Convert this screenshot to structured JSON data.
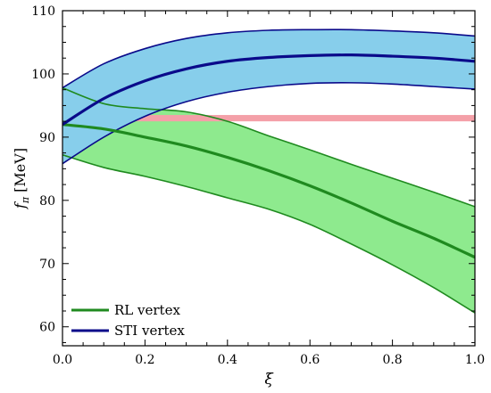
{
  "chart_data": {
    "type": "line",
    "xlabel": "ξ",
    "ylabel_var": "f",
    "ylabel_sub": "π",
    "ylabel_unit": "[MeV]",
    "xlim": [
      0,
      1
    ],
    "ylim": [
      57,
      110
    ],
    "xticks": [
      0.0,
      0.2,
      0.4,
      0.6,
      0.8,
      1.0
    ],
    "xtick_labels": [
      "0.0",
      "0.2",
      "0.4",
      "0.6",
      "0.8",
      "1.0"
    ],
    "yticks": [
      60,
      70,
      80,
      90,
      100,
      110
    ],
    "ytick_labels": [
      "60",
      "70",
      "80",
      "90",
      "100",
      "110"
    ],
    "grid": false,
    "legend_position": "bottom-left",
    "reference_band": {
      "y_low": 92.5,
      "y_high": 93.5,
      "color": "#f4a0a8"
    },
    "series": [
      {
        "name": "RL vertex",
        "color": "#1f8a1f",
        "fill": "#8eea8e",
        "x": [
          0.0,
          0.1,
          0.2,
          0.3,
          0.4,
          0.5,
          0.6,
          0.7,
          0.8,
          0.9,
          1.0
        ],
        "center": [
          92,
          91.3,
          90.0,
          88.6,
          86.8,
          84.7,
          82.3,
          79.6,
          76.7,
          74.0,
          71.0
        ],
        "upper": [
          97.8,
          95.3,
          94.5,
          94.0,
          92.5,
          90.2,
          88.0,
          85.7,
          83.5,
          81.3,
          79.0
        ],
        "lower": [
          87.2,
          85.2,
          83.8,
          82.2,
          80.4,
          78.6,
          76.2,
          73.1,
          69.8,
          66.2,
          62.2
        ]
      },
      {
        "name": "STI vertex",
        "color": "#0a0a8a",
        "fill": "#87ceeb",
        "x": [
          0.0,
          0.1,
          0.2,
          0.3,
          0.4,
          0.5,
          0.6,
          0.7,
          0.8,
          0.9,
          1.0
        ],
        "center": [
          92.0,
          96.1,
          98.9,
          100.8,
          102.0,
          102.6,
          102.9,
          103.0,
          102.8,
          102.5,
          102.0
        ],
        "upper": [
          97.8,
          101.6,
          104.0,
          105.6,
          106.5,
          106.9,
          107.0,
          107.0,
          106.8,
          106.5,
          106.0
        ],
        "lower": [
          85.8,
          90.0,
          93.3,
          95.6,
          97.1,
          98.0,
          98.5,
          98.6,
          98.4,
          98.0,
          97.6
        ]
      }
    ]
  }
}
